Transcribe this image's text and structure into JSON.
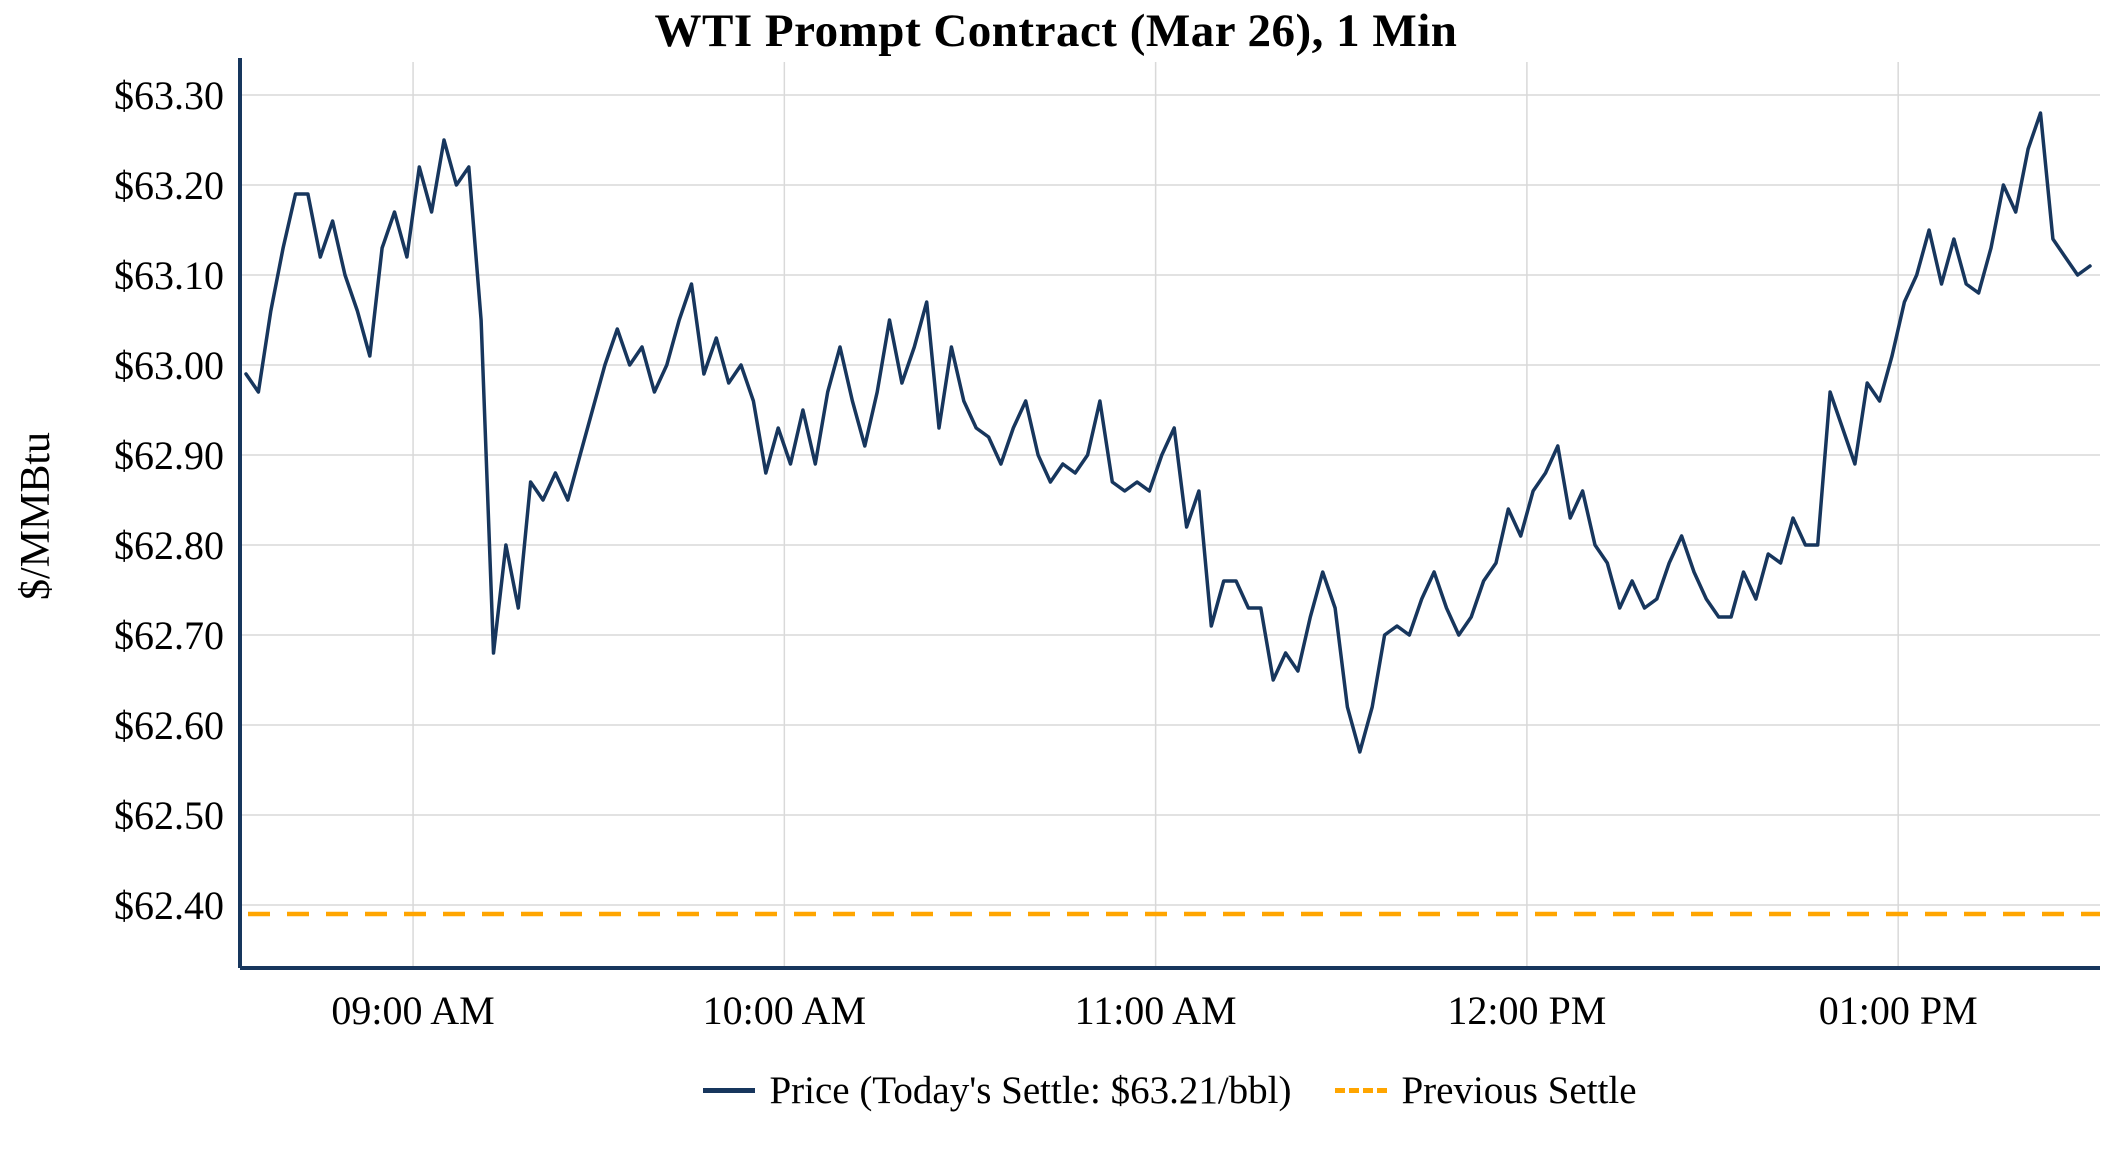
{
  "chart_data": {
    "type": "line",
    "title": "WTI Prompt Contract (Mar 26), 1 Min",
    "ylabel": "$/MMBtu",
    "xlabel": "",
    "grid": true,
    "legend_position": "bottom",
    "ylim": [
      62.33,
      63.33
    ],
    "colors": {
      "price": "#17365d",
      "settle": "#FFA500",
      "grid": "#d9d9d9",
      "text": "#000000"
    },
    "x_start_minutes": 513,
    "x_step_minutes": 2,
    "x_ticks": {
      "minutes": [
        540,
        600,
        660,
        720,
        780
      ],
      "labels": [
        "09:00 AM",
        "10:00 AM",
        "11:00 AM",
        "12:00 PM",
        "01:00 PM"
      ]
    },
    "y_ticks": {
      "values": [
        62.4,
        62.5,
        62.6,
        62.7,
        62.8,
        62.9,
        63.0,
        63.1,
        63.2,
        63.3
      ],
      "labels": [
        "$62.40",
        "$62.50",
        "$62.60",
        "$62.70",
        "$62.80",
        "$62.90",
        "$63.00",
        "$63.10",
        "$63.20",
        "$63.30"
      ]
    },
    "previous_settle": {
      "label": "Previous Settle",
      "value": 62.39
    },
    "series": [
      {
        "name": "Price (Today's Settle: $63.21/bbl)",
        "todays_settle": "$63.21/bbl",
        "values": [
          62.99,
          62.97,
          63.06,
          63.13,
          63.19,
          63.19,
          63.12,
          63.16,
          63.1,
          63.06,
          63.01,
          63.13,
          63.17,
          63.12,
          63.22,
          63.17,
          63.25,
          63.2,
          63.22,
          63.05,
          62.68,
          62.8,
          62.73,
          62.87,
          62.85,
          62.88,
          62.85,
          62.9,
          62.95,
          63.0,
          63.04,
          63.0,
          63.02,
          62.97,
          63.0,
          63.05,
          63.09,
          62.99,
          63.03,
          62.98,
          63.0,
          62.96,
          62.88,
          62.93,
          62.89,
          62.95,
          62.89,
          62.97,
          63.02,
          62.96,
          62.91,
          62.97,
          63.05,
          62.98,
          63.02,
          63.07,
          62.93,
          63.02,
          62.96,
          62.93,
          62.92,
          62.89,
          62.93,
          62.96,
          62.9,
          62.87,
          62.89,
          62.88,
          62.9,
          62.96,
          62.87,
          62.86,
          62.87,
          62.86,
          62.9,
          62.93,
          62.82,
          62.86,
          62.71,
          62.76,
          62.76,
          62.73,
          62.73,
          62.65,
          62.68,
          62.66,
          62.72,
          62.77,
          62.73,
          62.62,
          62.57,
          62.62,
          62.7,
          62.71,
          62.7,
          62.74,
          62.77,
          62.73,
          62.7,
          62.72,
          62.76,
          62.78,
          62.84,
          62.81,
          62.86,
          62.88,
          62.91,
          62.83,
          62.86,
          62.8,
          62.78,
          62.73,
          62.76,
          62.73,
          62.74,
          62.78,
          62.81,
          62.77,
          62.74,
          62.72,
          62.72,
          62.77,
          62.74,
          62.79,
          62.78,
          62.83,
          62.8,
          62.8,
          62.97,
          62.93,
          62.89,
          62.98,
          62.96,
          63.01,
          63.07,
          63.1,
          63.15,
          63.09,
          63.14,
          63.09,
          63.08,
          63.13,
          63.2,
          63.17,
          63.24,
          63.28,
          63.14,
          63.12,
          63.1,
          63.11
        ]
      }
    ]
  }
}
